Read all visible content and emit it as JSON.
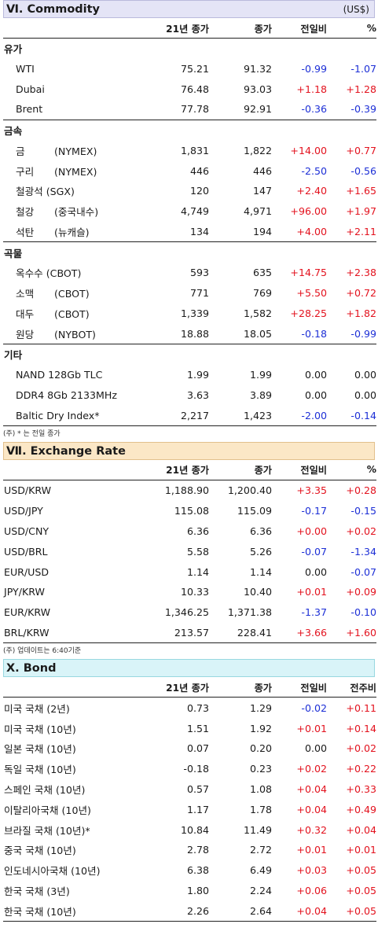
{
  "commodity": {
    "title": "Ⅵ. Commodity",
    "unit": "(US$)",
    "headers": [
      "21년 종가",
      "종가",
      "전일비",
      "%"
    ],
    "groups": [
      {
        "name": "유가",
        "rows": [
          {
            "a": "WTI",
            "b": "",
            "prev": "75.21",
            "close": "91.32",
            "chg": "-0.99",
            "pct": "-1.07"
          },
          {
            "a": "Dubai",
            "b": "",
            "prev": "76.48",
            "close": "93.03",
            "chg": "+1.18",
            "pct": "+1.28"
          },
          {
            "a": "Brent",
            "b": "",
            "prev": "77.78",
            "close": "92.91",
            "chg": "-0.36",
            "pct": "-0.39"
          }
        ]
      },
      {
        "name": "금속",
        "rows": [
          {
            "a": "금",
            "b": "(NYMEX)",
            "prev": "1,831",
            "close": "1,822",
            "chg": "+14.00",
            "pct": "+0.77"
          },
          {
            "a": "구리",
            "b": "(NYMEX)",
            "prev": "446",
            "close": "446",
            "chg": "-2.50",
            "pct": "-0.56"
          },
          {
            "a": "철광석 (SGX)",
            "b": "",
            "prev": "120",
            "close": "147",
            "chg": "+2.40",
            "pct": "+1.65"
          },
          {
            "a": "철강",
            "b": "(중국내수)",
            "prev": "4,749",
            "close": "4,971",
            "chg": "+96.00",
            "pct": "+1.97"
          },
          {
            "a": "석탄",
            "b": "(뉴캐슬)",
            "prev": "134",
            "close": "194",
            "chg": "+4.00",
            "pct": "+2.11"
          }
        ]
      },
      {
        "name": "곡물",
        "rows": [
          {
            "a": "옥수수 (CBOT)",
            "b": "",
            "prev": "593",
            "close": "635",
            "chg": "+14.75",
            "pct": "+2.38"
          },
          {
            "a": "소맥",
            "b": "(CBOT)",
            "prev": "771",
            "close": "769",
            "chg": "+5.50",
            "pct": "+0.72"
          },
          {
            "a": "대두",
            "b": "(CBOT)",
            "prev": "1,339",
            "close": "1,582",
            "chg": "+28.25",
            "pct": "+1.82"
          },
          {
            "a": "원당",
            "b": "(NYBOT)",
            "prev": "18.88",
            "close": "18.05",
            "chg": "-0.18",
            "pct": "-0.99"
          }
        ]
      },
      {
        "name": "기타",
        "rows": [
          {
            "a": "NAND 128Gb TLC",
            "b": "",
            "prev": "1.99",
            "close": "1.99",
            "chg": "0.00",
            "pct": "0.00"
          },
          {
            "a": "DDR4 8Gb 2133MHz",
            "b": "",
            "prev": "3.63",
            "close": "3.89",
            "chg": "0.00",
            "pct": "0.00"
          },
          {
            "a": "Baltic Dry Index*",
            "b": "",
            "prev": "2,217",
            "close": "1,423",
            "chg": "-2.00",
            "pct": "-0.14"
          }
        ]
      }
    ],
    "note": "(주) * 는 전일 종가"
  },
  "exchange": {
    "title": "Ⅶ. Exchange Rate",
    "headers": [
      "21년 종가",
      "종가",
      "전일비",
      "%"
    ],
    "rows": [
      {
        "name": "USD/KRW",
        "prev": "1,188.90",
        "close": "1,200.40",
        "chg": "+3.35",
        "pct": "+0.28"
      },
      {
        "name": "USD/JPY",
        "prev": "115.08",
        "close": "115.09",
        "chg": "-0.17",
        "pct": "-0.15"
      },
      {
        "name": "USD/CNY",
        "prev": "6.36",
        "close": "6.36",
        "chg": "+0.00",
        "pct": "+0.02"
      },
      {
        "name": "USD/BRL",
        "prev": "5.58",
        "close": "5.26",
        "chg": "-0.07",
        "pct": "-1.34"
      },
      {
        "name": "EUR/USD",
        "prev": "1.14",
        "close": "1.14",
        "chg": "0.00",
        "pct": "-0.07"
      },
      {
        "name": "JPY/KRW",
        "prev": "10.33",
        "close": "10.40",
        "chg": "+0.01",
        "pct": "+0.09"
      },
      {
        "name": "EUR/KRW",
        "prev": "1,346.25",
        "close": "1,371.38",
        "chg": "-1.37",
        "pct": "-0.10"
      },
      {
        "name": "BRL/KRW",
        "prev": "213.57",
        "close": "228.41",
        "chg": "+3.66",
        "pct": "+1.60"
      }
    ],
    "note": "(주) 업데이트는 6:40기준"
  },
  "bond": {
    "title": "Ⅹ. Bond",
    "headers": [
      "21년 종가",
      "종가",
      "전일비",
      "전주비"
    ],
    "rows": [
      {
        "name": "미국 국채 (2년)",
        "prev": "0.73",
        "close": "1.29",
        "chg": "-0.02",
        "pct": "+0.11"
      },
      {
        "name": "미국 국채 (10년)",
        "prev": "1.51",
        "close": "1.92",
        "chg": "+0.01",
        "pct": "+0.14"
      },
      {
        "name": "일본 국채 (10년)",
        "prev": "0.07",
        "close": "0.20",
        "chg": "0.00",
        "pct": "+0.02"
      },
      {
        "name": "독일 국채 (10년)",
        "prev": "-0.18",
        "close": "0.23",
        "chg": "+0.02",
        "pct": "+0.22"
      },
      {
        "name": "스페인 국채 (10년)",
        "prev": "0.57",
        "close": "1.08",
        "chg": "+0.04",
        "pct": "+0.33"
      },
      {
        "name": "이탈리아국채 (10년)",
        "prev": "1.17",
        "close": "1.78",
        "chg": "+0.04",
        "pct": "+0.49"
      },
      {
        "name": "브라질 국채 (10년)*",
        "prev": "10.84",
        "close": "11.49",
        "chg": "+0.32",
        "pct": "+0.04"
      },
      {
        "name": "중국 국채 (10년)",
        "prev": "2.78",
        "close": "2.72",
        "chg": "+0.01",
        "pct": "+0.01"
      },
      {
        "name": "인도네시아국채 (10년)",
        "prev": "6.38",
        "close": "6.49",
        "chg": "+0.03",
        "pct": "+0.05"
      },
      {
        "name": "한국 국채 (3년)",
        "prev": "1.80",
        "close": "2.24",
        "chg": "+0.06",
        "pct": "+0.05"
      },
      {
        "name": "한국 국채 (10년)",
        "prev": "2.26",
        "close": "2.64",
        "chg": "+0.04",
        "pct": "+0.05"
      }
    ]
  },
  "colors": {
    "positive": "#e3121e",
    "negative": "#1d2fd6",
    "neutral": "#1a1a1a"
  }
}
